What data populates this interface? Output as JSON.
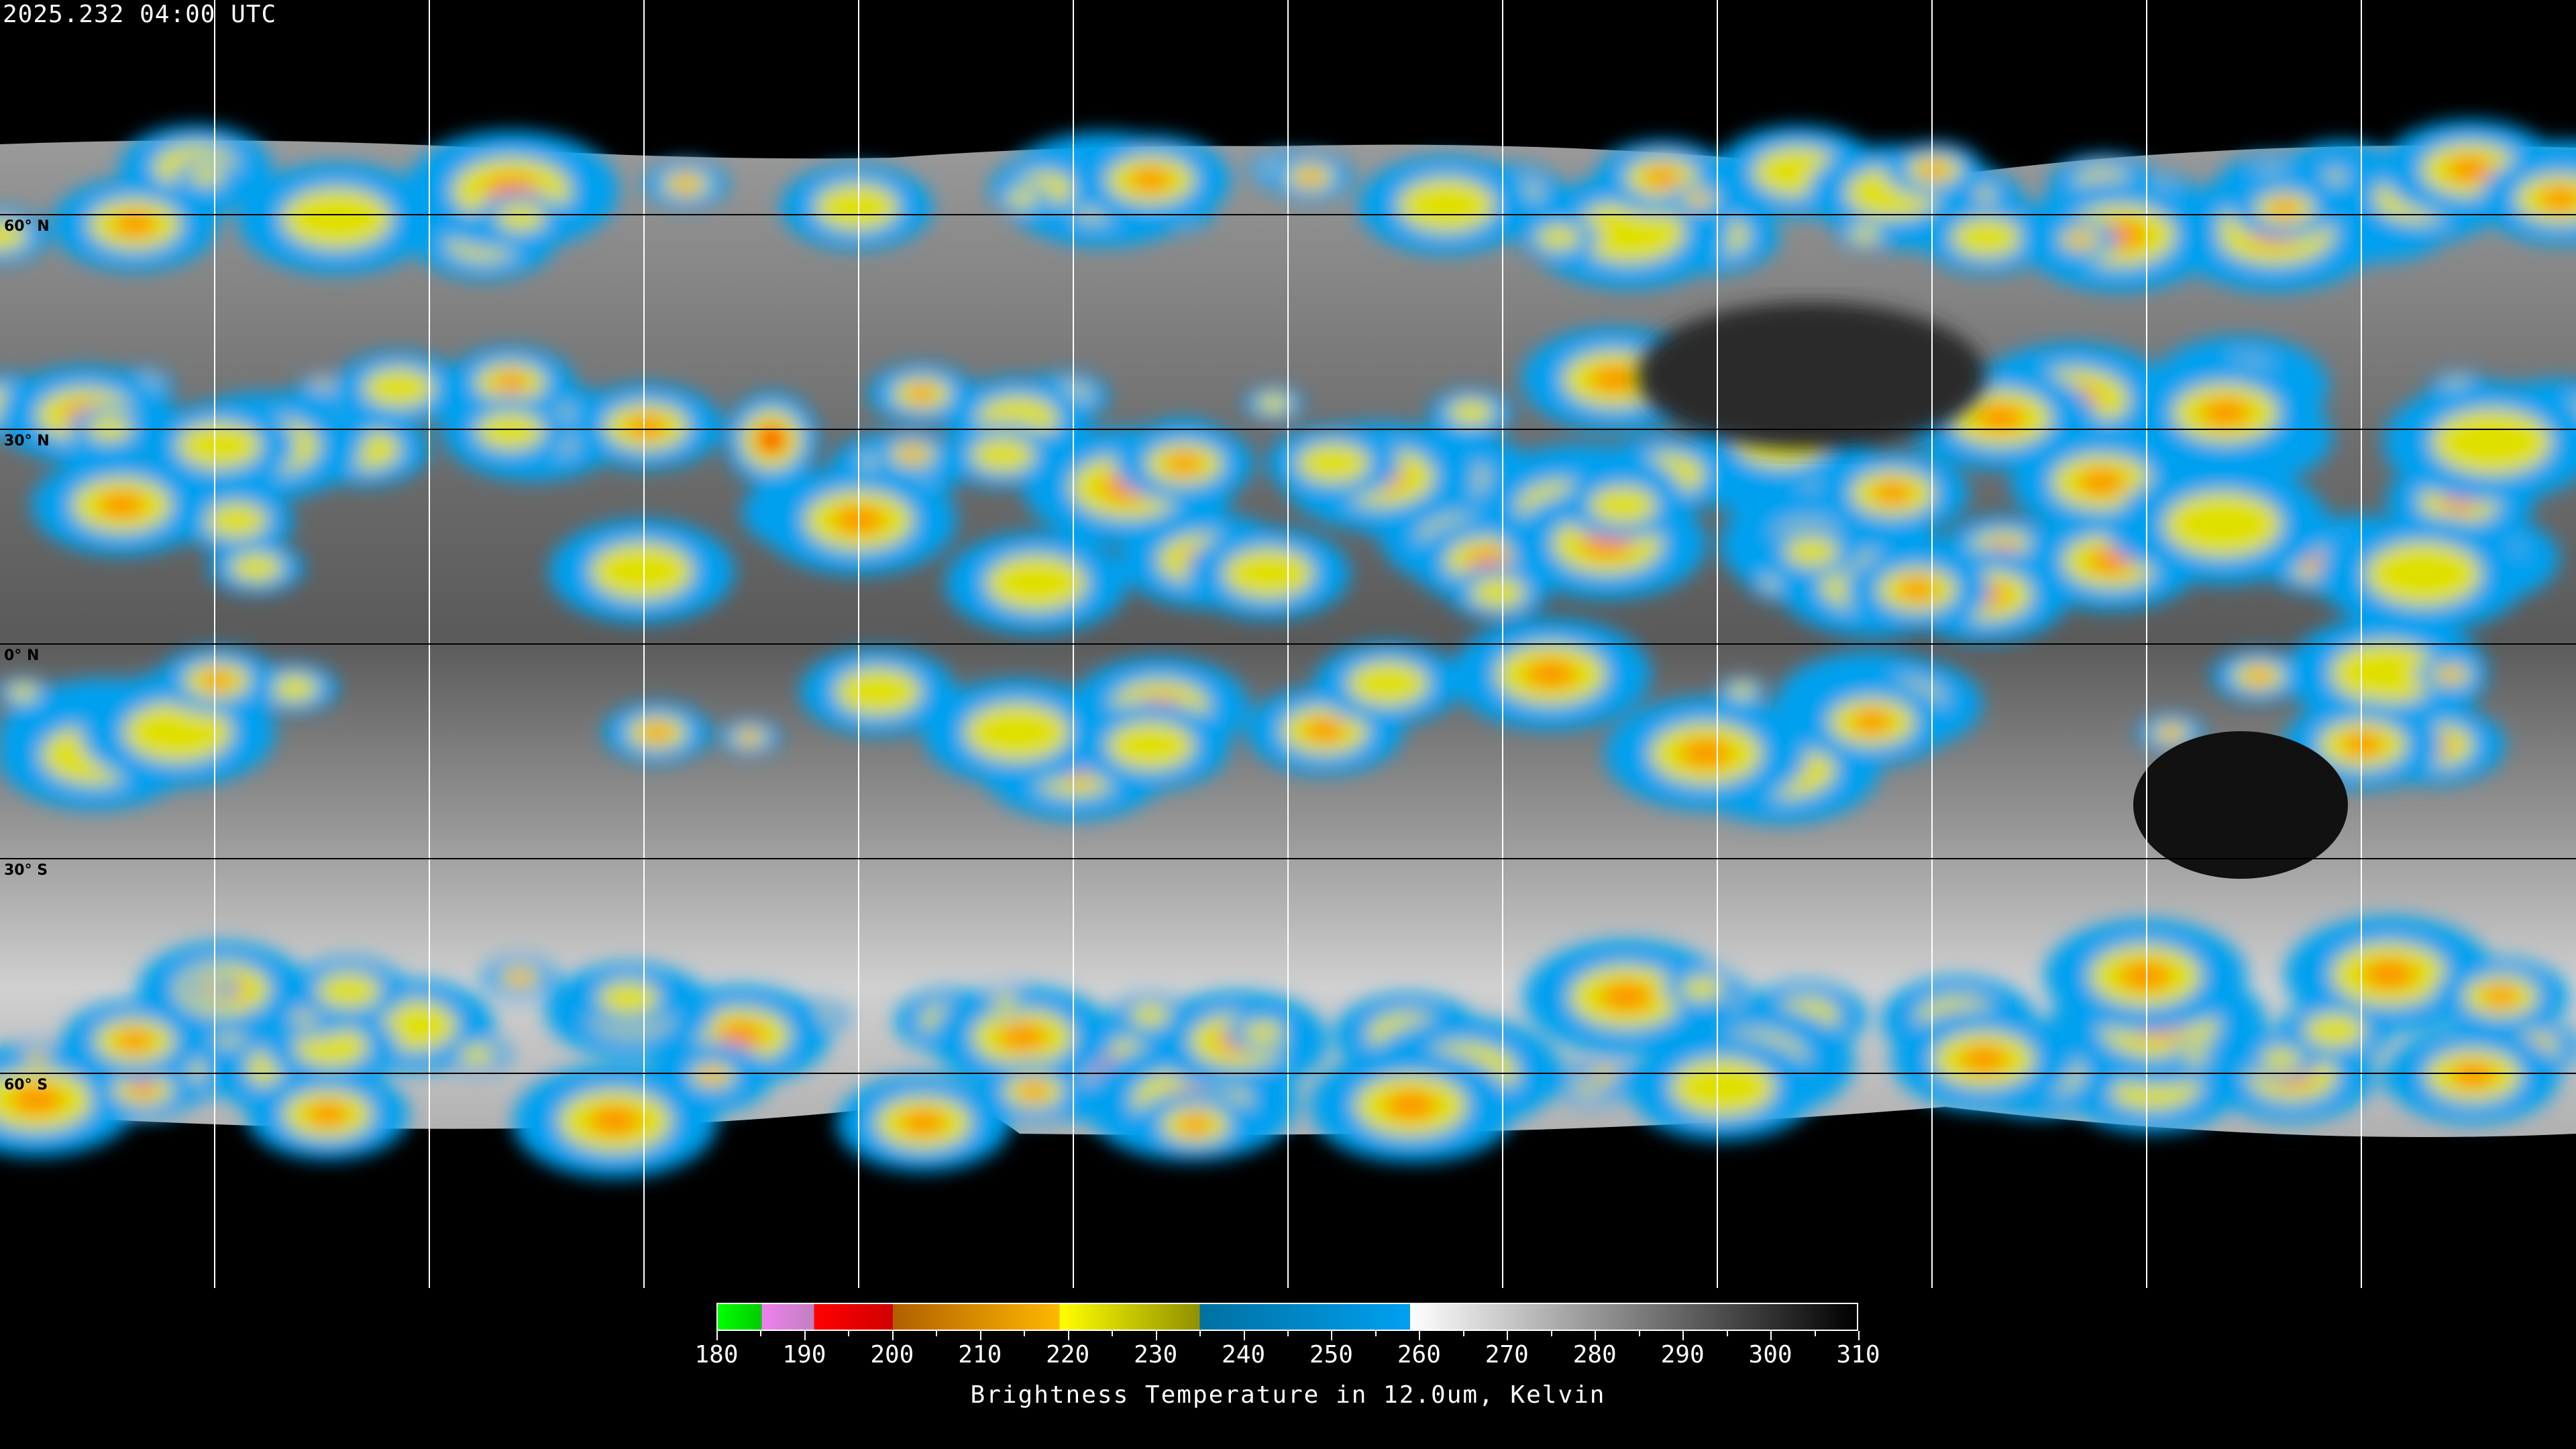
{
  "title": "2025.232 04:00 UTC",
  "map": {
    "projection": "equirectangular",
    "lat_labels": [
      "60° N",
      "30° N",
      "0° N",
      "30° S",
      "60° S"
    ],
    "grid_lon_step_deg": 30,
    "grid_lat_step_deg": 30
  },
  "colorbar": {
    "title": "Brightness Temperature in 12.0um, Kelvin",
    "min": 180,
    "max": 310,
    "tick_labels": [
      "180",
      "190",
      "200",
      "210",
      "220",
      "230",
      "240",
      "250",
      "260",
      "270",
      "280",
      "290",
      "300",
      "310"
    ],
    "segments": [
      {
        "from": 180,
        "to": 185,
        "colors": [
          "#00ff00",
          "#00cc00"
        ]
      },
      {
        "from": 185,
        "to": 191,
        "colors": [
          "#f080f0",
          "#c080c0"
        ]
      },
      {
        "from": 191,
        "to": 200,
        "colors": [
          "#ff0000",
          "#d00000"
        ]
      },
      {
        "from": 200,
        "to": 219,
        "colors": [
          "#b06000",
          "#ffb800"
        ]
      },
      {
        "from": 219,
        "to": 235,
        "colors": [
          "#ffff00",
          "#909000"
        ]
      },
      {
        "from": 235,
        "to": 259,
        "colors": [
          "#0070a0",
          "#00a0f0"
        ]
      },
      {
        "from": 259,
        "to": 310,
        "colors": [
          "#ffffff",
          "#000000"
        ]
      }
    ]
  }
}
